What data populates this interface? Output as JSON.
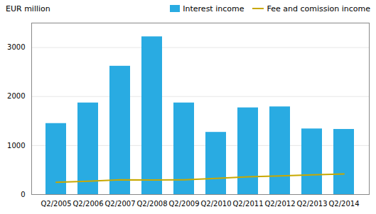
{
  "chart_data": {
    "type": "bar",
    "ylabel": "EUR million",
    "categories": [
      "Q2/2005",
      "Q2/2006",
      "Q2/2007",
      "Q2/2008",
      "Q2/2009",
      "Q2/2010",
      "Q2/2011",
      "Q2/2012",
      "Q2/2013",
      "Q2/2014"
    ],
    "series": [
      {
        "name": "Interest income",
        "type": "bar",
        "color": "#29ABE2",
        "values": [
          1450,
          1870,
          2620,
          3220,
          1870,
          1270,
          1770,
          1790,
          1340,
          1330
        ]
      },
      {
        "name": "Fee and comission income",
        "type": "line",
        "color": "#C8A800",
        "values": [
          250,
          270,
          300,
          295,
          300,
          330,
          360,
          380,
          400,
          420
        ]
      }
    ],
    "ylim": [
      0,
      3500
    ],
    "yticks": [
      0,
      1000,
      2000,
      3000
    ],
    "grid": true,
    "legend": "upper right"
  }
}
